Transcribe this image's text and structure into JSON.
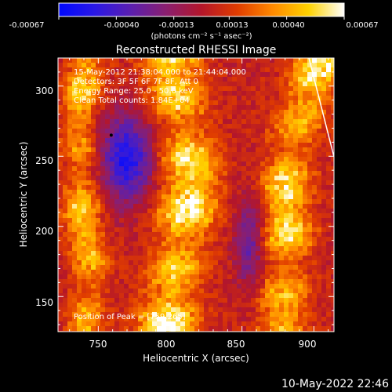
{
  "colorbar": {
    "ticks": [
      "-0.00067",
      "-0.00040",
      "-0.00013",
      "0.00013",
      "0.00040",
      "0.00067"
    ],
    "units": "(photons cm⁻² s⁻¹ asec⁻²)",
    "stops": [
      "#0008ff",
      "#2a18e6",
      "#5a1fb0",
      "#8a1f70",
      "#b4162a",
      "#e03c00",
      "#ff8a00",
      "#ffd200",
      "#ffffff"
    ]
  },
  "plot": {
    "title": "Reconstructed RHESSI Image",
    "xlabel": "Heliocentric X (arcsec)",
    "ylabel": "Heliocentric Y (arcsec)",
    "info_lines": [
      "15-May-2012 21:38:04.000 to 21:44:04.000",
      "Detectors: 3F 5F 6F 7F 8F, Att 0",
      "Energy Range: 25.0 - 50.0 keV",
      "Clean    Total counts: 1.84E+04"
    ],
    "peak_label": "Position of Peak = [759,265]"
  },
  "chart_data": {
    "type": "heatmap",
    "title": "Reconstructed RHESSI Image",
    "xlabel": "Heliocentric X (arcsec)",
    "ylabel": "Heliocentric Y (arcsec)",
    "xlim": [
      722,
      914
    ],
    "ylim": [
      125,
      320
    ],
    "x_ticks": [
      750,
      800,
      850,
      900
    ],
    "y_ticks": [
      150,
      200,
      250,
      300
    ],
    "colorbar_range": [
      -0.00067,
      0.00067
    ],
    "colormap": "blue-purple-red-yellow-white",
    "bright_ridges": [
      {
        "name": "central ridge",
        "path_x": [
          800,
          805,
          812,
          815,
          810,
          805,
          800,
          798
        ],
        "path_y": [
          320,
          290,
          260,
          230,
          200,
          175,
          150,
          125
        ],
        "peak_value": 0.00067
      },
      {
        "name": "right ridge",
        "path_x": [
          905,
          895,
          885,
          880,
          882,
          880,
          878
        ],
        "path_y": [
          320,
          290,
          260,
          230,
          200,
          170,
          135
        ],
        "peak_value": 0.0006
      },
      {
        "name": "left patches",
        "path_x": [
          740,
          735,
          740,
          738,
          745,
          742
        ],
        "path_y": [
          305,
          270,
          240,
          205,
          175,
          140
        ],
        "peak_value": 0.0005
      }
    ],
    "minimum_region": {
      "x": 770,
      "y": 248,
      "value": -0.00067
    },
    "peak_position": [
      759,
      265
    ],
    "grid": false
  },
  "footer": {
    "timestamp": "10-May-2022 22:46"
  }
}
